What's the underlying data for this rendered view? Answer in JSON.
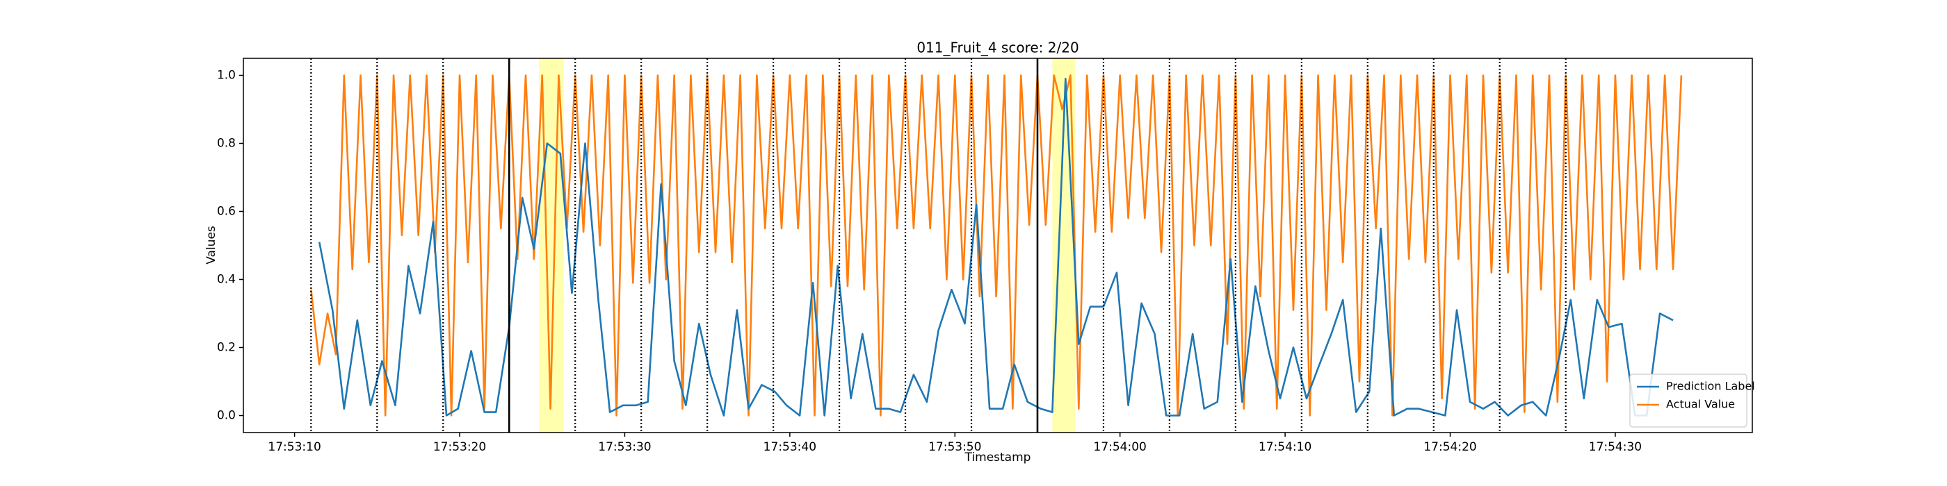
{
  "chart_data": {
    "type": "line",
    "title": "011_Fruit_4 score: 2/20",
    "x_label": "Timestamp",
    "y_label": "Values",
    "xlim": [
      6.9,
      98.3
    ],
    "ylim": [
      -0.05,
      1.05
    ],
    "xticks": [
      {
        "value": 10,
        "label": "17:53:10"
      },
      {
        "value": 20,
        "label": "17:53:20"
      },
      {
        "value": 30,
        "label": "17:53:30"
      },
      {
        "value": 40,
        "label": "17:53:40"
      },
      {
        "value": 50,
        "label": "17:53:50"
      },
      {
        "value": 60,
        "label": "17:54:00"
      },
      {
        "value": 70,
        "label": "17:54:10"
      },
      {
        "value": 80,
        "label": "17:54:20"
      },
      {
        "value": 90,
        "label": "17:54:30"
      }
    ],
    "yticks": [
      {
        "value": 0,
        "label": "0.0"
      },
      0.2,
      0.4,
      0.6,
      0.8,
      {
        "value": 1,
        "label": "1.0"
      }
    ],
    "legend": "lower right",
    "highlights": [
      [
        24.8,
        26.3
      ],
      [
        55.9,
        57.3
      ]
    ],
    "highlight_color": "#ffff99",
    "markers": [
      {
        "x": 11,
        "style": "dotted"
      },
      {
        "x": 15,
        "style": "dotted"
      },
      {
        "x": 19,
        "style": "dotted"
      },
      {
        "x": 23,
        "style": "solid"
      },
      {
        "x": 27,
        "style": "dotted"
      },
      {
        "x": 31,
        "style": "dotted"
      },
      {
        "x": 35,
        "style": "dotted"
      },
      {
        "x": 39,
        "style": "dotted"
      },
      {
        "x": 43,
        "style": "dotted"
      },
      {
        "x": 47,
        "style": "dotted"
      },
      {
        "x": 51,
        "style": "dotted"
      },
      {
        "x": 55,
        "style": "solid"
      },
      {
        "x": 59,
        "style": "dotted"
      },
      {
        "x": 63,
        "style": "dotted"
      },
      {
        "x": 67,
        "style": "dotted"
      },
      {
        "x": 71,
        "style": "dotted"
      },
      {
        "x": 75,
        "style": "dotted"
      },
      {
        "x": 79,
        "style": "dotted"
      },
      {
        "x": 83,
        "style": "dotted"
      },
      {
        "x": 87,
        "style": "dotted"
      }
    ],
    "series": [
      {
        "name": "Prediction Label",
        "color": "#1f77b4",
        "x": [
          11.5,
          12.3,
          13.0,
          13.8,
          14.6,
          15.3,
          16.1,
          16.9,
          17.6,
          18.4,
          19.2,
          19.9,
          20.7,
          21.5,
          22.2,
          23.0,
          23.8,
          24.5,
          25.3,
          26.1,
          26.8,
          27.6,
          28.4,
          29.1,
          29.9,
          30.7,
          31.4,
          32.2,
          33.0,
          33.7,
          34.5,
          35.2,
          36.0,
          36.8,
          37.5,
          38.3,
          39.1,
          39.8,
          40.6,
          41.4,
          42.1,
          42.9,
          43.7,
          44.4,
          45.2,
          46.0,
          46.7,
          47.5,
          48.3,
          49.0,
          49.8,
          50.6,
          51.3,
          52.1,
          52.9,
          53.6,
          54.4,
          55.2,
          55.9,
          56.7,
          57.5,
          58.2,
          59.0,
          59.8,
          60.5,
          61.3,
          62.1,
          62.8,
          63.6,
          64.4,
          65.1,
          65.9,
          66.7,
          67.4,
          68.2,
          69.0,
          69.7,
          70.5,
          71.3,
          72.0,
          72.8,
          73.5,
          74.3,
          75.1,
          75.8,
          76.6,
          77.4,
          78.1,
          78.9,
          79.7,
          80.4,
          81.2,
          82.0,
          82.7,
          83.5,
          84.3,
          85.0,
          85.8,
          86.6,
          87.3,
          88.1,
          88.9,
          89.6,
          90.4,
          91.2,
          91.9,
          92.7,
          93.5
        ],
        "values": [
          0.51,
          0.31,
          0.02,
          0.28,
          0.03,
          0.16,
          0.03,
          0.44,
          0.3,
          0.57,
          0.0,
          0.02,
          0.19,
          0.01,
          0.01,
          0.26,
          0.64,
          0.49,
          0.8,
          0.77,
          0.36,
          0.8,
          0.34,
          0.01,
          0.03,
          0.03,
          0.04,
          0.68,
          0.16,
          0.03,
          0.27,
          0.12,
          0.0,
          0.31,
          0.02,
          0.09,
          0.07,
          0.03,
          0.0,
          0.39,
          0.0,
          0.44,
          0.05,
          0.24,
          0.02,
          0.02,
          0.01,
          0.12,
          0.04,
          0.25,
          0.37,
          0.27,
          0.62,
          0.02,
          0.02,
          0.15,
          0.04,
          0.02,
          0.01,
          0.99,
          0.21,
          0.32,
          0.32,
          0.42,
          0.03,
          0.33,
          0.24,
          0.0,
          0.0,
          0.24,
          0.02,
          0.04,
          0.46,
          0.04,
          0.38,
          0.19,
          0.05,
          0.2,
          0.05,
          0.14,
          0.24,
          0.34,
          0.01,
          0.07,
          0.55,
          0.0,
          0.02,
          0.02,
          0.01,
          0.0,
          0.31,
          0.04,
          0.02,
          0.04,
          0.0,
          0.03,
          0.04,
          0.0,
          0.17,
          0.34,
          0.05,
          0.34,
          0.26,
          0.27,
          0.0,
          0.0,
          0.3,
          0.28
        ]
      },
      {
        "name": "Actual Value",
        "color": "#ff7f0e",
        "x": [
          11,
          11.5,
          12,
          12.5,
          13,
          13.5,
          14,
          14.5,
          15,
          15.5,
          16,
          16.5,
          17,
          17.5,
          18,
          18.5,
          19,
          19.5,
          20,
          20.5,
          21,
          21.5,
          22,
          22.5,
          23,
          23.5,
          24,
          24.5,
          25,
          25.5,
          26,
          26.5,
          27,
          27.5,
          28,
          28.5,
          29,
          29.5,
          30,
          30.5,
          31,
          31.5,
          32,
          32.5,
          33,
          33.5,
          34,
          34.5,
          35,
          35.5,
          36,
          36.5,
          37,
          37.5,
          38,
          38.5,
          39,
          39.5,
          40,
          40.5,
          41,
          41.5,
          42,
          42.5,
          43,
          43.5,
          44,
          44.5,
          45,
          45.5,
          46,
          46.5,
          47,
          47.5,
          48,
          48.5,
          49,
          49.5,
          50,
          50.5,
          51,
          51.5,
          52,
          52.5,
          53,
          53.5,
          54,
          54.5,
          55,
          55.5,
          56,
          56.5,
          57,
          57.5,
          58,
          58.5,
          59,
          59.5,
          60,
          60.5,
          61,
          61.5,
          62,
          62.5,
          63,
          63.5,
          64,
          64.5,
          65,
          65.5,
          66,
          66.5,
          67,
          67.5,
          68,
          68.5,
          69,
          69.5,
          70,
          70.5,
          71,
          71.5,
          72,
          72.5,
          73,
          73.5,
          74,
          74.5,
          75,
          75.5,
          76,
          76.5,
          77,
          77.5,
          78,
          78.5,
          79,
          79.5,
          80,
          80.5,
          81,
          81.5,
          82,
          82.5,
          83,
          83.5,
          84,
          84.5,
          85,
          85.5,
          86,
          86.5,
          87,
          87.5,
          88,
          88.5,
          89,
          89.5,
          90,
          90.5,
          91,
          91.5,
          92,
          92.5,
          93,
          93.5,
          94
        ],
        "values": [
          0.37,
          0.15,
          0.3,
          0.18,
          1.0,
          0.43,
          1.0,
          0.45,
          1.0,
          0.0,
          1.0,
          0.53,
          1.0,
          0.53,
          1.0,
          0.48,
          1.0,
          0.0,
          1.0,
          0.45,
          1.0,
          0.02,
          1.0,
          0.55,
          1.0,
          0.46,
          1.0,
          0.46,
          1.0,
          0.02,
          1.0,
          0.55,
          1.0,
          0.54,
          1.0,
          0.5,
          1.0,
          0.0,
          1.0,
          0.39,
          1.0,
          0.39,
          1.0,
          0.4,
          1.0,
          0.02,
          1.0,
          0.48,
          1.0,
          0.48,
          1.0,
          0.45,
          1.0,
          0.0,
          1.0,
          0.55,
          1.0,
          0.55,
          1.0,
          0.55,
          1.0,
          0.0,
          1.0,
          0.38,
          1.0,
          0.38,
          1.0,
          0.37,
          1.0,
          0.0,
          1.0,
          0.55,
          1.0,
          0.55,
          1.0,
          0.55,
          1.0,
          0.4,
          1.0,
          0.4,
          1.0,
          0.35,
          1.0,
          0.35,
          1.0,
          0.02,
          1.0,
          0.56,
          1.0,
          0.56,
          1.0,
          0.9,
          1.0,
          0.02,
          1.0,
          0.54,
          1.0,
          0.54,
          1.0,
          0.58,
          1.0,
          0.58,
          1.0,
          0.48,
          1.0,
          0.0,
          1.0,
          0.5,
          1.0,
          0.5,
          1.0,
          0.21,
          1.0,
          0.02,
          1.0,
          0.35,
          1.0,
          0.02,
          1.0,
          0.31,
          1.0,
          0.0,
          1.0,
          0.31,
          1.0,
          0.45,
          1.0,
          0.1,
          1.0,
          0.55,
          1.0,
          0.0,
          1.0,
          0.46,
          1.0,
          0.45,
          1.0,
          0.05,
          1.0,
          0.46,
          1.0,
          0.02,
          1.0,
          0.42,
          1.0,
          0.42,
          1.0,
          0.01,
          1.0,
          0.37,
          1.0,
          0.04,
          1.0,
          0.37,
          1.0,
          0.4,
          1.0,
          0.1,
          1.0,
          0.4,
          1.0,
          0.43,
          1.0,
          0.43,
          1.0,
          0.43,
          1.0
        ]
      }
    ]
  }
}
